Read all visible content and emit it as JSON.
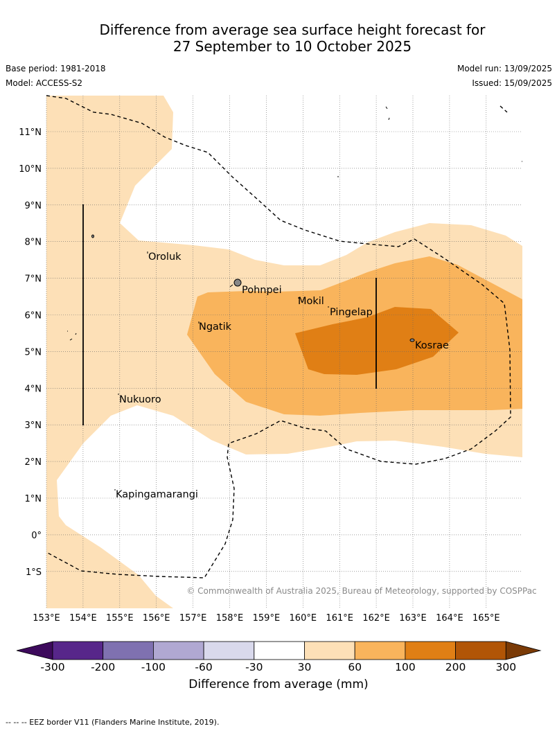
{
  "header": {
    "title_line1": "Difference from average sea surface height forecast for",
    "title_line2": "27 September to 10 October 2025",
    "base_period": "Base period: 1981-2018",
    "model": "Model: ACCESS-S2",
    "model_run": "Model run: 13/09/2025",
    "issued": "Issued: 15/09/2025"
  },
  "map": {
    "lon_labels": [
      "153°E",
      "154°E",
      "155°E",
      "156°E",
      "157°E",
      "158°E",
      "159°E",
      "160°E",
      "161°E",
      "162°E",
      "163°E",
      "164°E",
      "165°E"
    ],
    "lat_labels": [
      "11°N",
      "10°N",
      "9°N",
      "8°N",
      "7°N",
      "6°N",
      "5°N",
      "4°N",
      "3°N",
      "2°N",
      "1°N",
      "0°",
      "1°S"
    ],
    "places": [
      "Oroluk",
      "Pohnpei",
      "Mokil",
      "Pingelap",
      "Ngatik",
      "Kosrae",
      "Nukuoro",
      "Kapingamarangi"
    ],
    "copyright": "© Commonwealth of Australia 2025, Bureau of Meteorology, supported by COSPPac"
  },
  "colorbar": {
    "tick_labels": [
      "-300",
      "-200",
      "-100",
      "-60",
      "-30",
      "30",
      "60",
      "100",
      "200",
      "300"
    ],
    "colors": [
      "#3d0a5c",
      "#57268a",
      "#7f71b0",
      "#b0a8d2",
      "#d9d9ec",
      "#ffffff",
      "#fde0b7",
      "#f9b45c",
      "#e07f15",
      "#b15506",
      "#7a3a06"
    ],
    "label": "Difference from average (mm)"
  },
  "footnote": "--  --  -- EEZ border V11 (Flanders Marine Institute, 2019)."
}
